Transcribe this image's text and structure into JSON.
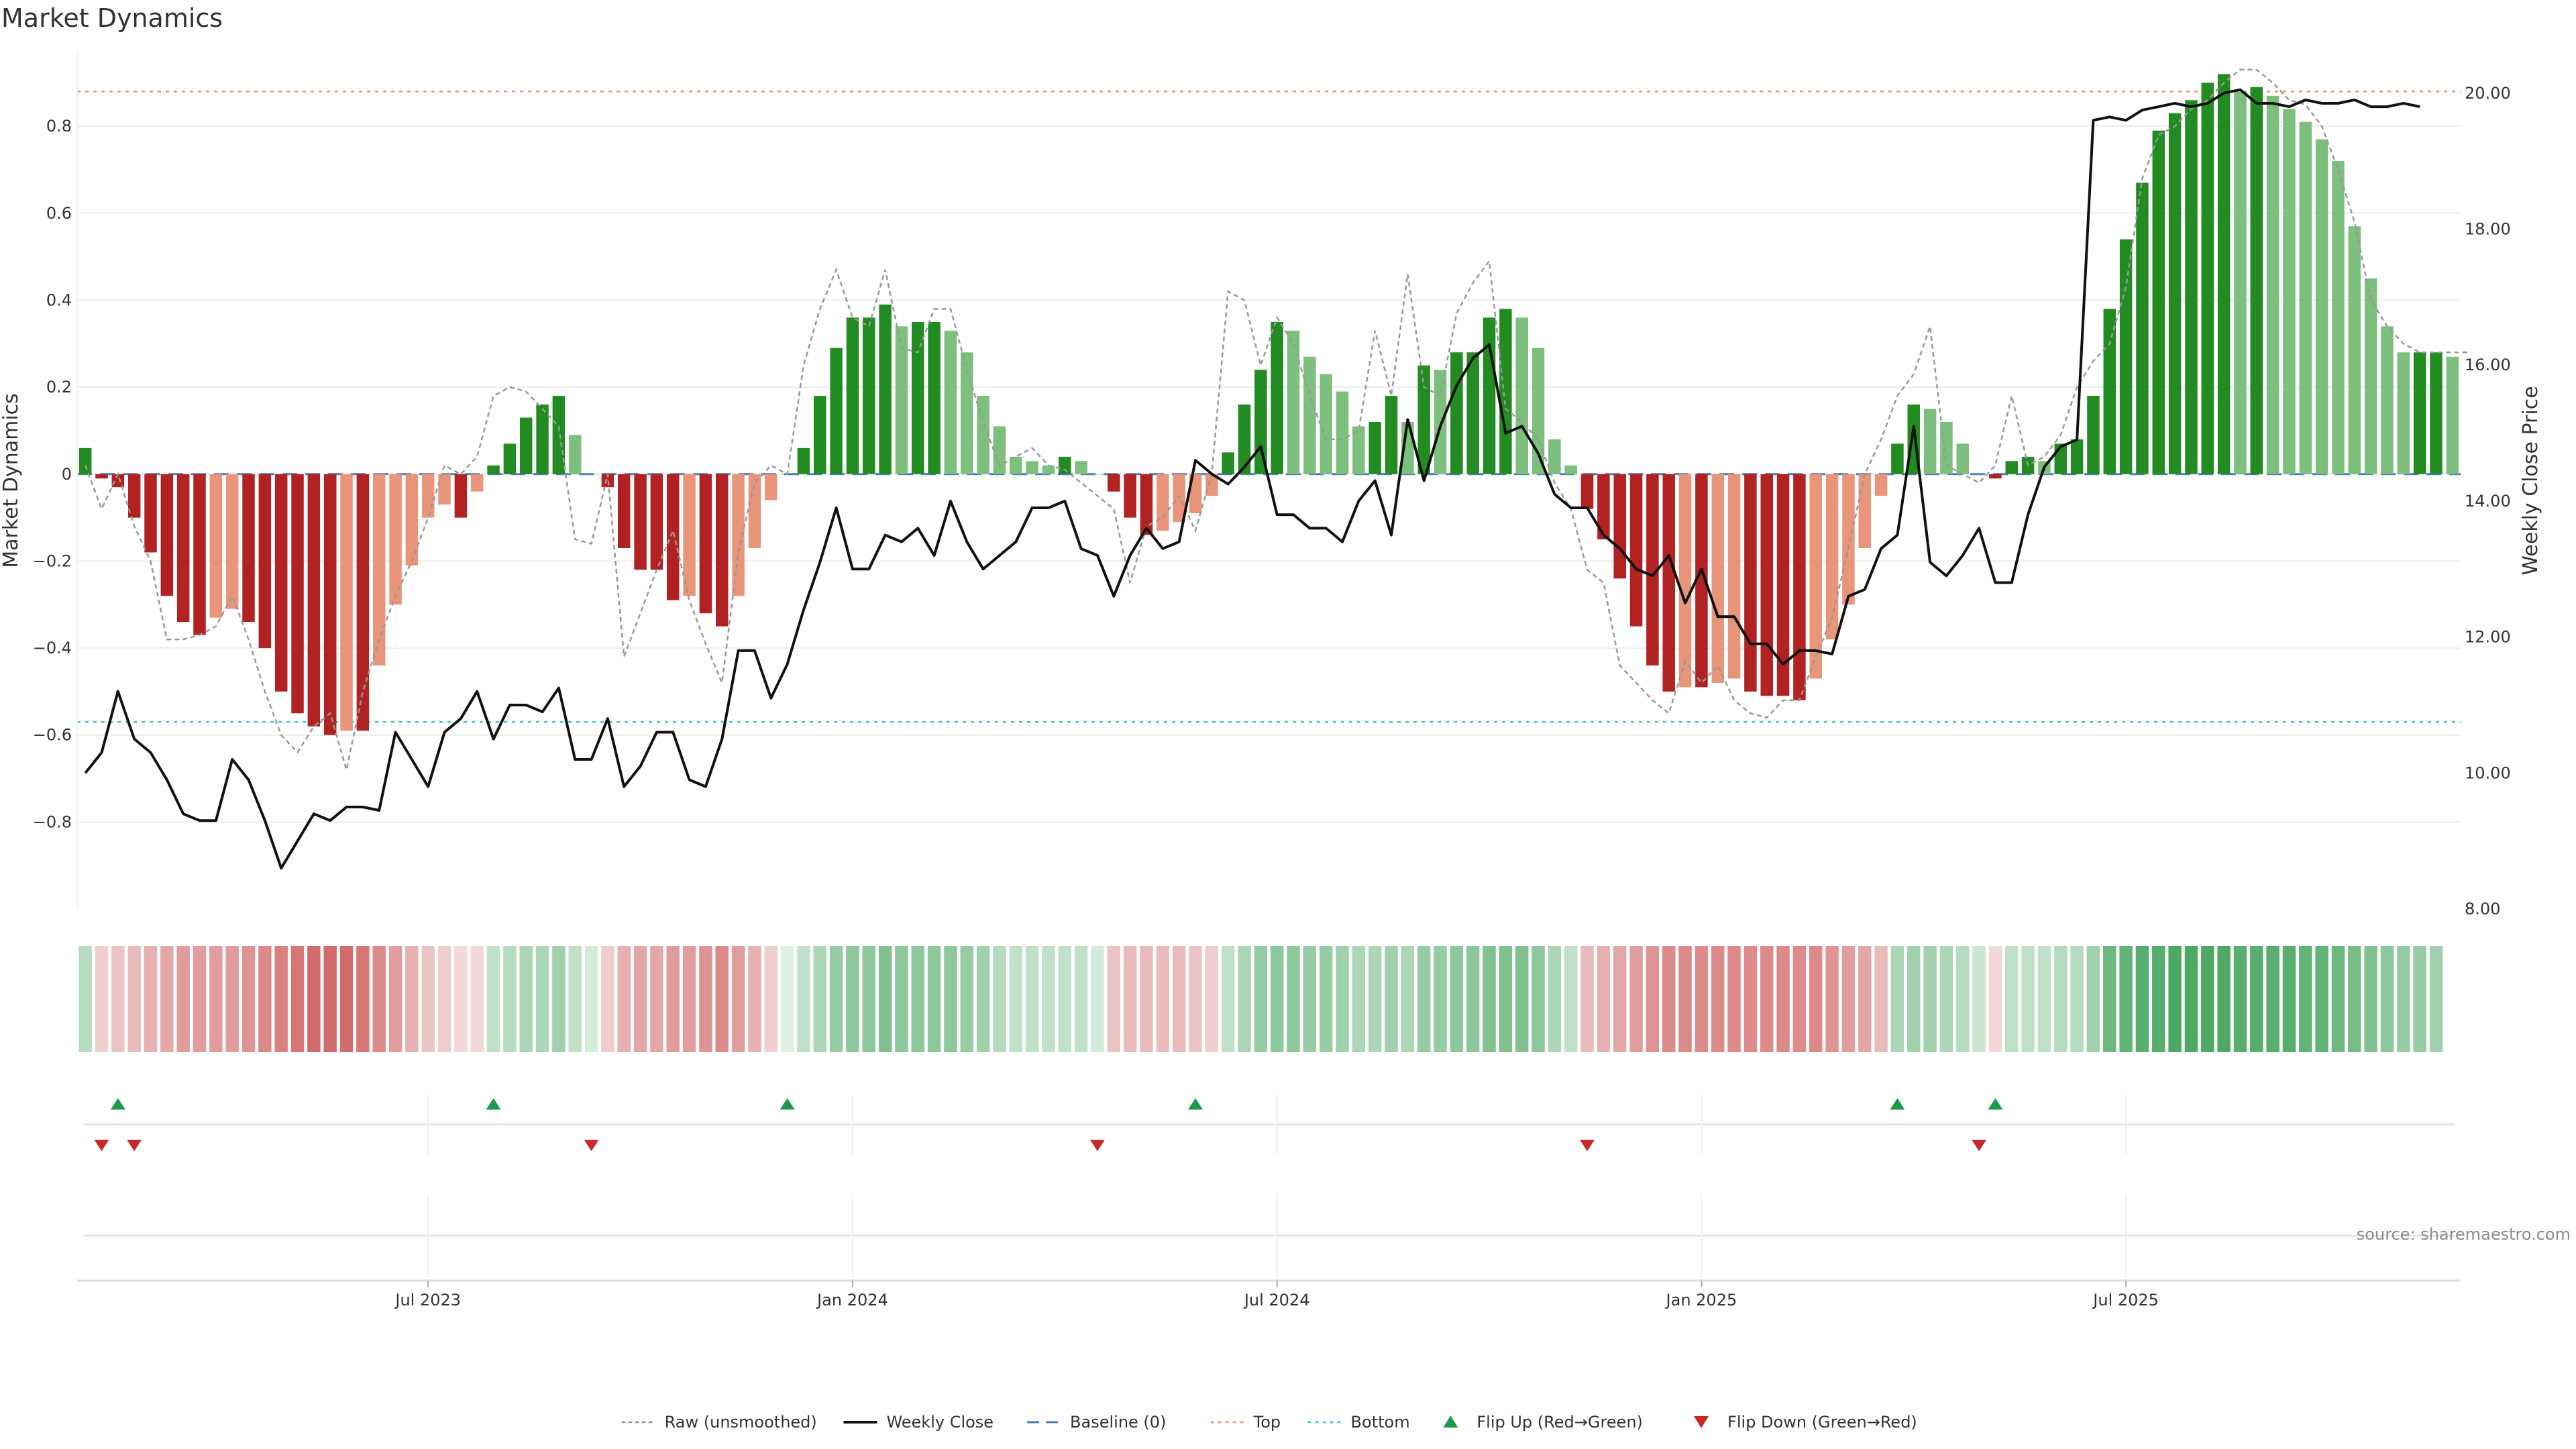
{
  "title": "Market Dynamics",
  "source": "source: sharemaestro.com",
  "chart_data": {
    "type": "bar",
    "title": "Market Dynamics",
    "ylabel": "Market Dynamics",
    "y2label": "Weekly Close Price",
    "ylim": [
      -1.0,
      0.97
    ],
    "y2lim": [
      8.0,
      20.6
    ],
    "yticks": [
      -0.8,
      -0.6,
      -0.4,
      -0.2,
      0,
      0.2,
      0.4,
      0.6,
      0.8
    ],
    "ytick_labels": [
      "−0.8",
      "−0.6",
      "−0.4",
      "−0.2",
      "0",
      "0.2",
      "0.4",
      "0.6",
      "0.8"
    ],
    "y2ticks": [
      8,
      10,
      12,
      14,
      16,
      18,
      20
    ],
    "y2tick_labels": [
      "8.00",
      "10.00",
      "12.00",
      "14.00",
      "16.00",
      "18.00",
      "20.00"
    ],
    "xticks": [
      {
        "week": 21,
        "label": "Jul 2023"
      },
      {
        "week": 47,
        "label": "Jan 2024"
      },
      {
        "week": 73,
        "label": "Jul 2024"
      },
      {
        "week": 99,
        "label": "Jan 2025"
      },
      {
        "week": 125,
        "label": "Jul 2025"
      }
    ],
    "baseline": 0,
    "top": 0.88,
    "bottom": -0.57,
    "grid": true,
    "legend_position": "bottom",
    "colors": {
      "strong_up": "#228b22",
      "weak_up": "#7dbf7d",
      "strong_down": "#b22222",
      "weak_down": "#e8957a",
      "close": "#111111",
      "raw": "#999999",
      "baseline": "#4a7fb5",
      "top": "#f0a080",
      "bottom": "#55c8d0",
      "flip_up": "#1a9a4a",
      "flip_down": "#c82828"
    },
    "bars": [
      0.06,
      -0.01,
      -0.03,
      -0.1,
      -0.18,
      -0.28,
      -0.34,
      -0.37,
      -0.33,
      -0.31,
      -0.34,
      -0.4,
      -0.5,
      -0.55,
      -0.58,
      -0.6,
      -0.59,
      -0.59,
      -0.44,
      -0.3,
      -0.21,
      -0.1,
      -0.07,
      -0.1,
      -0.04,
      0.02,
      0.07,
      0.13,
      0.16,
      0.18,
      0.09,
      0.0,
      -0.03,
      -0.17,
      -0.22,
      -0.22,
      -0.29,
      -0.28,
      -0.32,
      -0.35,
      -0.28,
      -0.17,
      -0.06,
      0.0,
      0.06,
      0.18,
      0.29,
      0.36,
      0.36,
      0.39,
      0.34,
      0.35,
      0.35,
      0.33,
      0.28,
      0.18,
      0.11,
      0.04,
      0.03,
      0.02,
      0.04,
      0.03,
      0.0,
      -0.04,
      -0.1,
      -0.14,
      -0.13,
      -0.11,
      -0.09,
      -0.05,
      0.05,
      0.16,
      0.24,
      0.35,
      0.33,
      0.27,
      0.23,
      0.19,
      0.11,
      0.12,
      0.18,
      0.12,
      0.25,
      0.24,
      0.28,
      0.28,
      0.36,
      0.38,
      0.36,
      0.29,
      0.08,
      0.02,
      -0.08,
      -0.15,
      -0.24,
      -0.35,
      -0.44,
      -0.5,
      -0.49,
      -0.49,
      -0.48,
      -0.47,
      -0.5,
      -0.51,
      -0.51,
      -0.52,
      -0.47,
      -0.38,
      -0.3,
      -0.17,
      -0.05,
      0.07,
      0.16,
      0.15,
      0.12,
      0.07,
      0.0,
      -0.01,
      0.03,
      0.04,
      0.03,
      0.07,
      0.08,
      0.18,
      0.38,
      0.54,
      0.67,
      0.79,
      0.83,
      0.86,
      0.9,
      0.92,
      0.88,
      0.89,
      0.87,
      0.84,
      0.81,
      0.77,
      0.72,
      0.57,
      0.45,
      0.34,
      0.28,
      0.28,
      0.28,
      0.27
    ],
    "intensity": [
      0.35,
      0.25,
      0.3,
      0.35,
      0.4,
      0.45,
      0.5,
      0.5,
      0.5,
      0.5,
      0.55,
      0.6,
      0.65,
      0.7,
      0.75,
      0.75,
      0.75,
      0.7,
      0.6,
      0.5,
      0.4,
      0.3,
      0.25,
      0.2,
      0.2,
      0.3,
      0.35,
      0.4,
      0.4,
      0.45,
      0.3,
      0.2,
      0.25,
      0.4,
      0.45,
      0.45,
      0.5,
      0.5,
      0.55,
      0.6,
      0.5,
      0.4,
      0.25,
      0.15,
      0.3,
      0.4,
      0.5,
      0.55,
      0.55,
      0.6,
      0.55,
      0.55,
      0.55,
      0.55,
      0.5,
      0.45,
      0.35,
      0.3,
      0.3,
      0.3,
      0.3,
      0.3,
      0.2,
      0.3,
      0.35,
      0.35,
      0.35,
      0.35,
      0.3,
      0.25,
      0.3,
      0.4,
      0.5,
      0.55,
      0.55,
      0.5,
      0.5,
      0.45,
      0.4,
      0.4,
      0.45,
      0.4,
      0.5,
      0.5,
      0.55,
      0.55,
      0.6,
      0.6,
      0.6,
      0.55,
      0.4,
      0.3,
      0.35,
      0.4,
      0.45,
      0.5,
      0.55,
      0.6,
      0.6,
      0.6,
      0.6,
      0.6,
      0.6,
      0.6,
      0.6,
      0.6,
      0.6,
      0.55,
      0.5,
      0.45,
      0.35,
      0.4,
      0.45,
      0.45,
      0.4,
      0.35,
      0.25,
      0.2,
      0.3,
      0.3,
      0.3,
      0.35,
      0.35,
      0.45,
      0.7,
      0.75,
      0.8,
      0.8,
      0.85,
      0.85,
      0.85,
      0.85,
      0.8,
      0.8,
      0.8,
      0.8,
      0.75,
      0.75,
      0.7,
      0.65,
      0.6,
      0.55,
      0.5,
      0.5,
      0.45
    ],
    "close": [
      10.0,
      10.3,
      11.2,
      10.5,
      10.3,
      9.9,
      9.4,
      9.3,
      9.3,
      10.2,
      9.9,
      9.3,
      8.6,
      9.0,
      9.4,
      9.3,
      9.5,
      9.5,
      9.45,
      10.6,
      10.2,
      9.8,
      10.6,
      10.8,
      11.2,
      10.5,
      11.0,
      11.0,
      10.9,
      11.25,
      10.2,
      10.2,
      10.8,
      9.8,
      10.1,
      10.6,
      10.6,
      9.9,
      9.8,
      10.5,
      11.8,
      11.8,
      11.1,
      11.6,
      12.4,
      13.1,
      13.9,
      13.0,
      13.0,
      13.5,
      13.4,
      13.6,
      13.2,
      14.0,
      13.4,
      13.0,
      13.2,
      13.4,
      13.9,
      13.9,
      14.0,
      13.3,
      13.2,
      12.6,
      13.2,
      13.6,
      13.3,
      13.4,
      14.6,
      14.4,
      14.25,
      14.5,
      14.8,
      13.8,
      13.8,
      13.6,
      13.6,
      13.4,
      14.0,
      14.3,
      13.5,
      15.2,
      14.3,
      15.1,
      15.7,
      16.1,
      16.3,
      15.0,
      15.1,
      14.7,
      14.1,
      13.9,
      13.9,
      13.5,
      13.3,
      13.0,
      12.9,
      13.2,
      12.5,
      13.0,
      12.3,
      12.3,
      11.9,
      11.9,
      11.6,
      11.8,
      11.8,
      11.75,
      12.6,
      12.7,
      13.3,
      13.5,
      15.1,
      13.1,
      12.9,
      13.2,
      13.6,
      12.8,
      12.8,
      13.8,
      14.5,
      14.8,
      14.9,
      19.6,
      19.65,
      19.6,
      19.75,
      19.8,
      19.85,
      19.8,
      19.85,
      20.0,
      20.05,
      19.85,
      19.85,
      19.8,
      19.9,
      19.85,
      19.85,
      19.9,
      19.8,
      19.8,
      19.85,
      19.8
    ],
    "raw": [
      0.02,
      -0.08,
      0.0,
      -0.12,
      -0.2,
      -0.38,
      -0.38,
      -0.37,
      -0.35,
      -0.28,
      -0.38,
      -0.5,
      -0.6,
      -0.64,
      -0.58,
      -0.55,
      -0.68,
      -0.5,
      -0.38,
      -0.28,
      -0.2,
      -0.1,
      0.02,
      0.0,
      0.04,
      0.18,
      0.2,
      0.19,
      0.15,
      0.11,
      -0.15,
      -0.16,
      0.0,
      -0.42,
      -0.32,
      -0.22,
      -0.13,
      -0.29,
      -0.39,
      -0.48,
      -0.18,
      -0.02,
      0.02,
      0.0,
      0.25,
      0.38,
      0.47,
      0.36,
      0.34,
      0.47,
      0.29,
      0.28,
      0.38,
      0.38,
      0.24,
      0.12,
      0.02,
      0.04,
      0.06,
      0.02,
      0.01,
      -0.02,
      -0.05,
      -0.08,
      -0.25,
      -0.12,
      -0.1,
      -0.05,
      -0.13,
      0.0,
      0.42,
      0.4,
      0.25,
      0.36,
      0.3,
      0.18,
      0.08,
      0.08,
      0.1,
      0.33,
      0.18,
      0.46,
      0.2,
      0.18,
      0.37,
      0.44,
      0.49,
      0.15,
      0.12,
      0.08,
      -0.02,
      -0.08,
      -0.22,
      -0.25,
      -0.44,
      -0.48,
      -0.52,
      -0.55,
      -0.43,
      -0.48,
      -0.44,
      -0.52,
      -0.55,
      -0.56,
      -0.52,
      -0.52,
      -0.42,
      -0.33,
      -0.17,
      0.0,
      0.08,
      0.18,
      0.23,
      0.34,
      0.02,
      0.0,
      -0.02,
      0.02,
      0.18,
      0.02,
      0.04,
      0.09,
      0.2,
      0.26,
      0.3,
      0.43,
      0.68,
      0.78,
      0.8,
      0.84,
      0.86,
      0.9,
      0.93,
      0.93,
      0.9,
      0.86,
      0.85,
      0.8,
      0.7,
      0.58,
      0.4,
      0.34,
      0.3,
      0.28,
      0.28,
      0.28,
      0.28
    ],
    "flip_up_weeks": [
      2,
      25,
      43,
      68,
      111,
      117
    ],
    "flip_down_weeks": [
      1,
      3,
      31,
      62,
      92,
      116
    ]
  },
  "legend": [
    {
      "key": "raw",
      "label": "Raw (unsmoothed)"
    },
    {
      "key": "close",
      "label": "Weekly Close"
    },
    {
      "key": "baseline",
      "label": "Baseline (0)"
    },
    {
      "key": "top",
      "label": "Top"
    },
    {
      "key": "bottom",
      "label": "Bottom"
    },
    {
      "key": "flip_up",
      "label": "Flip Up (Red→Green)"
    },
    {
      "key": "flip_down",
      "label": "Flip Down (Green→Red)"
    }
  ]
}
